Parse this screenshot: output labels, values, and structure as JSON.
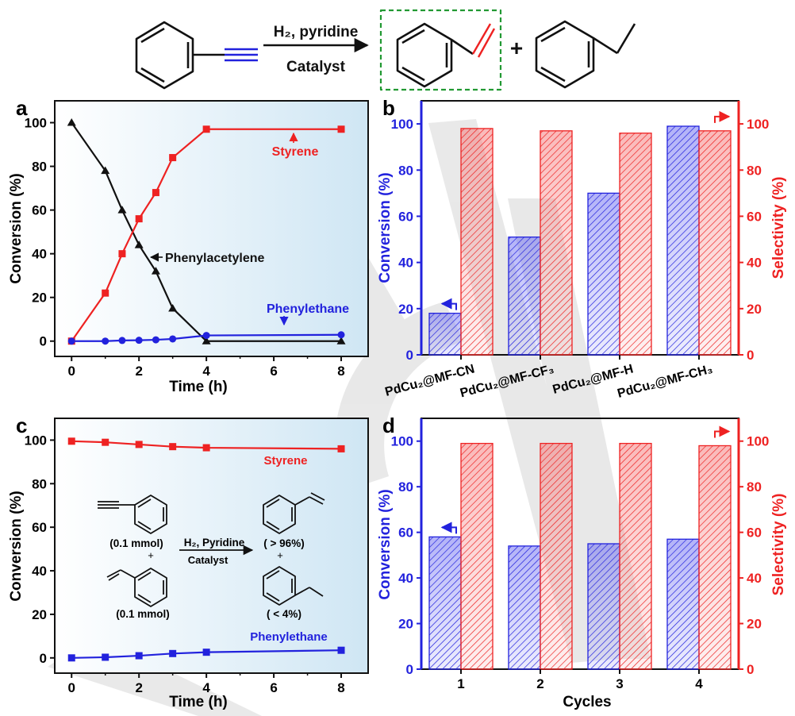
{
  "scheme": {
    "reagent_top": "H₂, pyridine",
    "reagent_bottom": "Catalyst",
    "plus": "+"
  },
  "colors": {
    "black": "#111111",
    "red": "#ee2222",
    "blue": "#2222dd",
    "green": "#229933"
  },
  "chart_data": [
    {
      "panel": "a",
      "type": "line",
      "xlabel": "Time (h)",
      "ylabel": "Conversion (%)",
      "xlim": [
        -0.5,
        8.8
      ],
      "ylim": [
        -7,
        110
      ],
      "xticks": [
        0,
        2,
        4,
        6,
        8
      ],
      "yticks": [
        0,
        20,
        40,
        60,
        80,
        100
      ],
      "series": [
        {
          "name": "Phenylacetylene",
          "color": "#111111",
          "marker": "triangle",
          "x": [
            0,
            1,
            1.5,
            2,
            2.5,
            3,
            4,
            8
          ],
          "y": [
            100,
            78,
            60,
            44,
            32,
            15,
            0,
            0
          ]
        },
        {
          "name": "Styrene",
          "color": "#ee2222",
          "marker": "square",
          "x": [
            0,
            1,
            1.5,
            2,
            2.5,
            3,
            4,
            8
          ],
          "y": [
            0,
            22,
            40,
            56,
            68,
            84,
            97,
            97
          ]
        },
        {
          "name": "Phenylethane",
          "color": "#2222dd",
          "marker": "circle",
          "x": [
            0,
            1,
            1.5,
            2,
            2.5,
            3,
            4,
            8
          ],
          "y": [
            0,
            0,
            0.3,
            0.4,
            0.6,
            1,
            2.6,
            2.9
          ]
        }
      ]
    },
    {
      "panel": "b",
      "type": "bar",
      "categories": [
        "PdCu₂@MF-CN",
        "PdCu₂@MF-CF₃",
        "PdCu₂@MF-H",
        "PdCu₂@MF-CH₃"
      ],
      "ylabel": "Conversion (%)",
      "y2label": "Selectivity (%)",
      "ylim": [
        0,
        110
      ],
      "yticks": [
        0,
        20,
        40,
        60,
        80,
        100
      ],
      "series": [
        {
          "axis": "left",
          "color": "#2222dd",
          "values": [
            18,
            51,
            70,
            99
          ]
        },
        {
          "axis": "right",
          "color": "#ee2222",
          "values": [
            98,
            97,
            96,
            97
          ]
        }
      ]
    },
    {
      "panel": "c",
      "type": "line",
      "xlabel": "Time (h)",
      "ylabel": "Conversion (%)",
      "xlim": [
        -0.5,
        8.8
      ],
      "ylim": [
        -7,
        110
      ],
      "xticks": [
        0,
        2,
        4,
        6,
        8
      ],
      "yticks": [
        0,
        20,
        40,
        60,
        80,
        100
      ],
      "series": [
        {
          "name": "Styrene",
          "color": "#ee2222",
          "marker": "square",
          "x": [
            0,
            1,
            2,
            3,
            4,
            8
          ],
          "y": [
            99.5,
            99,
            98,
            97,
            96.5,
            96
          ]
        },
        {
          "name": "Phenylethane",
          "color": "#2222dd",
          "marker": "square",
          "x": [
            0,
            1,
            2,
            3,
            4,
            8
          ],
          "y": [
            0,
            0.3,
            1,
            2,
            2.6,
            3.5
          ]
        }
      ],
      "inset": {
        "reactant1_amount": "(0.1 mmol)",
        "reactant2_amount": "(0.1 mmol)",
        "plus": "+",
        "reagent_top": "H₂, Pyridine",
        "reagent_bottom": "Catalyst",
        "product1_yield": "( > 96%)",
        "product2_yield": "( < 4%)"
      }
    },
    {
      "panel": "d",
      "type": "bar",
      "categories": [
        "1",
        "2",
        "3",
        "4"
      ],
      "xlabel": "Cycles",
      "ylabel": "Conversion (%)",
      "y2label": "Selectivity (%)",
      "ylim": [
        0,
        110
      ],
      "yticks": [
        0,
        20,
        40,
        60,
        80,
        100
      ],
      "series": [
        {
          "axis": "left",
          "color": "#2222dd",
          "values": [
            58,
            54,
            55,
            57
          ]
        },
        {
          "axis": "right",
          "color": "#ee2222",
          "values": [
            99,
            99,
            99,
            98
          ]
        }
      ]
    }
  ]
}
